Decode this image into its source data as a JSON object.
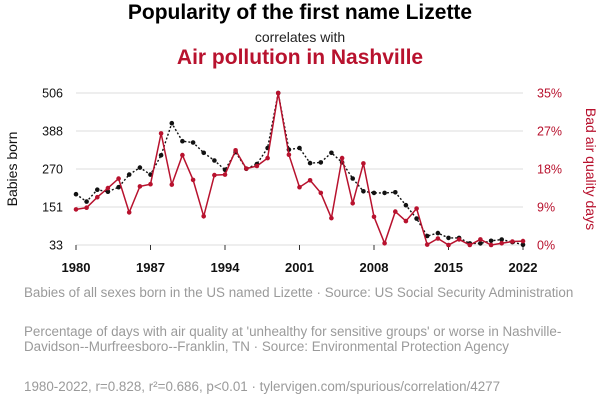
{
  "header": {
    "title": "Popularity of the first name Lizette",
    "subtitle": "correlates with",
    "title2": "Air pollution in Nashville"
  },
  "colors": {
    "series1": "#111111",
    "series2": "#b8122e",
    "grid": "#dcdcdc",
    "muted": "#9a9a9a"
  },
  "legend": {
    "series1": "Babies of all sexes born in the US named Lizette · Source: US Social Security Administration",
    "series2": "Percentage of days with air quality at 'unhealthy for sensitive groups' or worse in Nashville-Davidson--Murfreesboro--Franklin, TN · Source: Environmental Protection Agency"
  },
  "footer": "1980-2022, r=0.828, r²=0.686, p<0.01 · tylervigen.com/spurious/correlation/4277",
  "chart_data": {
    "type": "line",
    "x": [
      1980,
      1981,
      1982,
      1983,
      1984,
      1985,
      1986,
      1987,
      1988,
      1989,
      1990,
      1991,
      1992,
      1993,
      1994,
      1995,
      1996,
      1997,
      1998,
      1999,
      2000,
      2001,
      2002,
      2003,
      2004,
      2005,
      2006,
      2007,
      2008,
      2009,
      2010,
      2011,
      2012,
      2013,
      2014,
      2015,
      2016,
      2017,
      2018,
      2019,
      2020,
      2021,
      2022
    ],
    "xticks": [
      "1980",
      "1987",
      "1994",
      "2001",
      "2008",
      "2015",
      "2022"
    ],
    "xlim": [
      1980,
      2022
    ],
    "series": [
      {
        "name": "Babies of all sexes born in the US named Lizette",
        "axis": "left",
        "style": "dotted",
        "values": [
          191,
          168,
          205,
          199,
          213,
          252,
          274,
          252,
          312,
          412,
          356,
          352,
          320,
          296,
          267,
          322,
          270,
          285,
          335,
          506,
          330,
          335,
          288,
          290,
          320,
          290,
          240,
          200,
          195,
          195,
          197,
          157,
          115,
          61,
          70,
          55,
          55,
          38,
          38,
          46,
          50,
          42,
          34
        ]
      },
      {
        "name": "Percentage of days with air quality at 'unhealthy for sensitive groups' or worse in Nashville-Davidson--Murfreesboro--Franklin, TN",
        "axis": "right",
        "style": "solid",
        "values": [
          8.2,
          8.6,
          11.0,
          13.1,
          15.3,
          7.5,
          13.5,
          14.0,
          25.7,
          13.9,
          20.7,
          15.0,
          6.6,
          16.1,
          16.2,
          21.8,
          17.6,
          18.2,
          20.0,
          35.0,
          20.8,
          13.3,
          14.9,
          12.0,
          6.2,
          20.0,
          9.6,
          18.8,
          6.5,
          0.4,
          7.7,
          5.5,
          8.4,
          0.1,
          1.5,
          0.0,
          1.3,
          0.0,
          1.3,
          0.0,
          0.4,
          0.8,
          0.9
        ]
      }
    ],
    "y_left": {
      "label": "Babies born",
      "ticks": [
        "33",
        "151",
        "270",
        "388",
        "506"
      ],
      "ylim": [
        33,
        506
      ]
    },
    "y_right": {
      "label": "Bad air quality days",
      "ticks": [
        "0%",
        "9%",
        "18%",
        "27%",
        "35%"
      ],
      "ylim": [
        0,
        35
      ]
    }
  }
}
